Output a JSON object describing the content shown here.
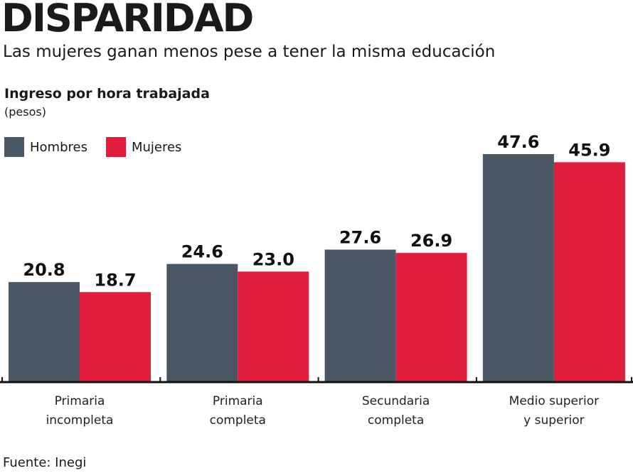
{
  "header": {
    "title": "DISPARIDAD",
    "subtitle": "Las mujeres ganan menos pese a tener la misma educación"
  },
  "footer": {
    "source": "Fuente: Inegi"
  },
  "colors": {
    "Hombres": "#4a5866",
    "Mujeres": "#e21d3b"
  },
  "chart_data": {
    "type": "bar",
    "title": "Ingreso por hora trabajada",
    "ylabel": "Ingreso por hora trabajada",
    "yunit": "(pesos)",
    "categories": [
      [
        "Primaria",
        "incompleta"
      ],
      [
        "Primaria",
        "completa"
      ],
      [
        "Secundaria",
        "completa"
      ],
      [
        "Medio superior",
        "y superior"
      ]
    ],
    "series": [
      {
        "name": "Hombres",
        "values": [
          20.8,
          24.6,
          27.6,
          47.6
        ],
        "labels": [
          "20.8",
          "24.6",
          "27.6",
          "47.6"
        ]
      },
      {
        "name": "Mujeres",
        "values": [
          18.7,
          23.0,
          26.9,
          45.9
        ],
        "labels": [
          "18.7",
          "23.0",
          "26.9",
          "45.9"
        ]
      }
    ],
    "ylim": [
      0,
      50
    ],
    "grid": false,
    "legend": "top-left"
  }
}
